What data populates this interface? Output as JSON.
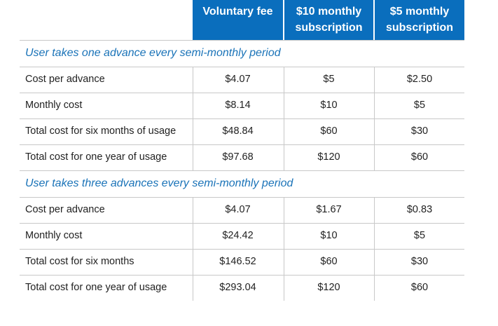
{
  "table": {
    "header": [
      "Voluntary fee",
      "$10 monthly subscription",
      "$5 monthly subscription"
    ],
    "sections": [
      {
        "title": "User takes one advance every semi-monthly period",
        "rows": [
          [
            "Cost per advance",
            "$4.07",
            "$5",
            "$2.50"
          ],
          [
            "Monthly cost",
            "$8.14",
            "$10",
            "$5"
          ],
          [
            "Total cost for six months of usage",
            "$48.84",
            "$60",
            "$30"
          ],
          [
            "Total cost for one year of usage",
            "$97.68",
            "$120",
            "$60"
          ]
        ]
      },
      {
        "title": "User takes three advances every semi-monthly period",
        "rows": [
          [
            "Cost per advance",
            "$4.07",
            "$1.67",
            "$0.83"
          ],
          [
            "Monthly cost",
            "$24.42",
            "$10",
            "$5"
          ],
          [
            "Total cost for six months",
            "$146.52",
            "$60",
            "$30"
          ],
          [
            "Total cost for one year of usage",
            "$293.04",
            "$120",
            "$60"
          ]
        ]
      }
    ]
  }
}
